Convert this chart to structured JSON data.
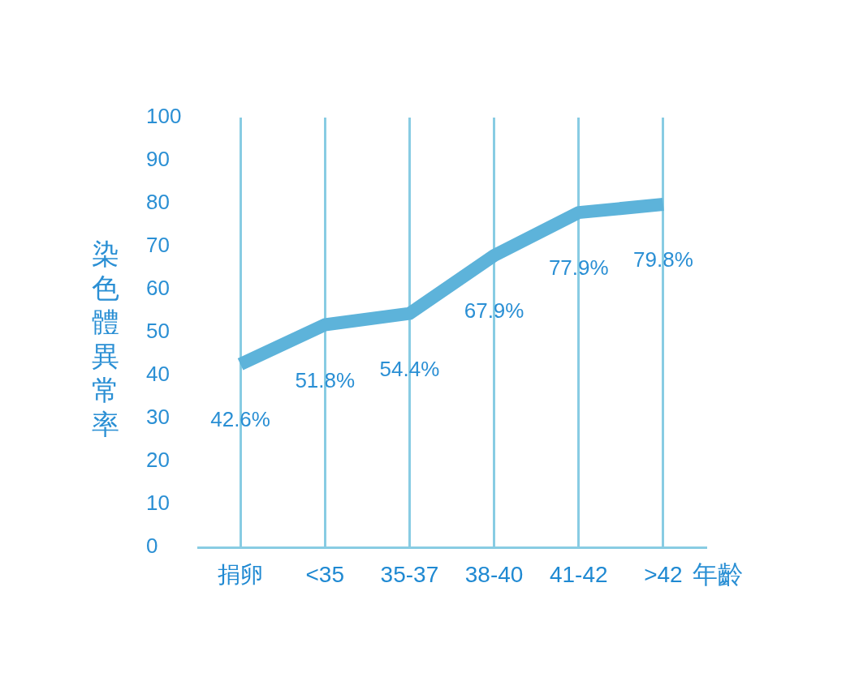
{
  "chart_data": {
    "type": "line",
    "xlabel": "年齡",
    "ylabel": "染色體異常率",
    "categories": [
      "捐卵",
      "<35",
      "35-37",
      "38-40",
      "41-42",
      ">42"
    ],
    "series": [
      {
        "color": "#5db3da",
        "values": [
          42.6,
          51.8,
          54.4,
          67.9,
          77.9,
          79.8
        ],
        "value_labels": [
          "42.6%",
          "51.8%",
          "54.4%",
          "67.9%",
          "77.9%",
          "79.8%"
        ]
      }
    ],
    "ylim": [
      0,
      100
    ],
    "yticks": [
      0,
      10,
      20,
      30,
      40,
      50,
      60,
      70,
      80,
      90,
      100
    ],
    "grid": "x",
    "legend": false,
    "marker": "none",
    "line_style": "solid"
  }
}
